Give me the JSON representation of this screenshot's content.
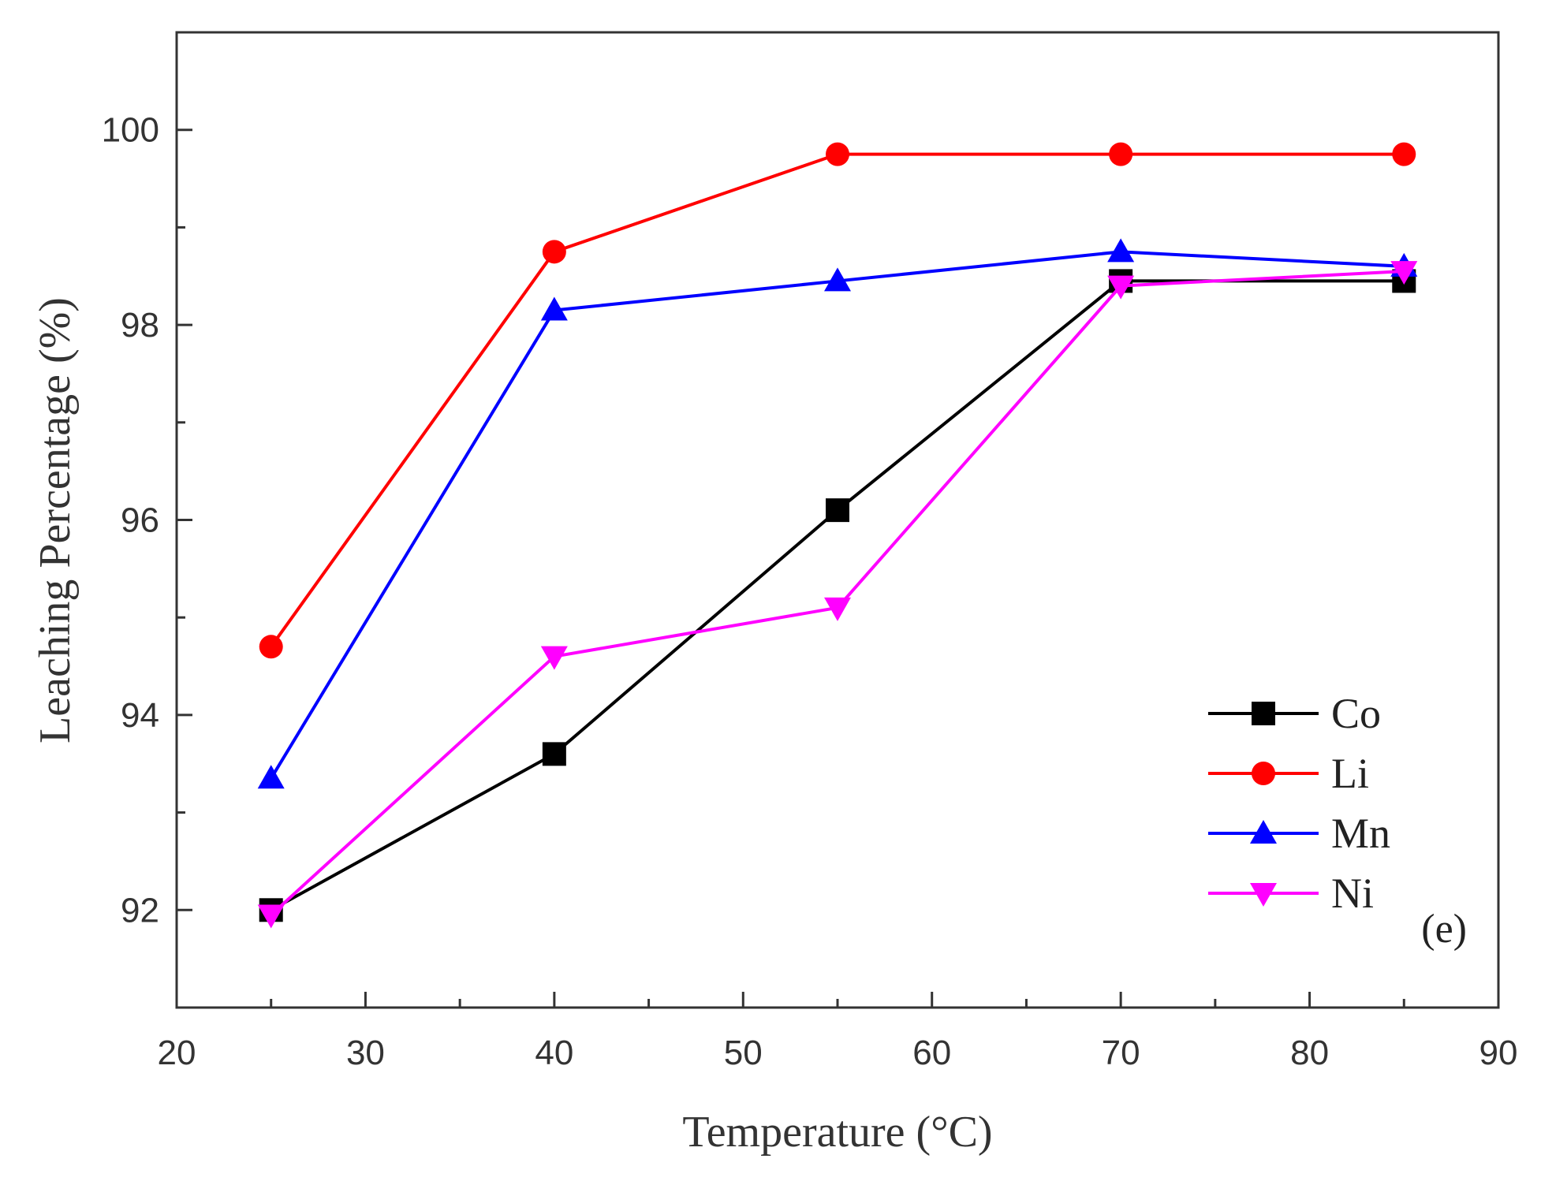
{
  "chart_data": {
    "type": "line",
    "title": "",
    "xlabel": "Temperature (°C)",
    "ylabel": "Leaching Percentage (%)",
    "xlim": [
      20,
      90
    ],
    "ylim": [
      91,
      101
    ],
    "xticks": [
      20,
      30,
      40,
      50,
      60,
      70,
      80,
      90
    ],
    "yticks": [
      92,
      94,
      96,
      98,
      100
    ],
    "grid": false,
    "legend": "bottom-right",
    "annotation": "(e)",
    "x": [
      25,
      40,
      55,
      70,
      85
    ],
    "series": [
      {
        "name": "Co",
        "color": "#000000",
        "marker": "square",
        "values": [
          92.0,
          93.6,
          96.1,
          98.45,
          98.45
        ]
      },
      {
        "name": "Li",
        "color": "#ff0000",
        "marker": "circle",
        "values": [
          94.7,
          98.75,
          99.75,
          99.75,
          99.75
        ]
      },
      {
        "name": "Mn",
        "color": "#0000ff",
        "marker": "triangle-up",
        "values": [
          93.35,
          98.15,
          98.45,
          98.75,
          98.6
        ]
      },
      {
        "name": "Ni",
        "color": "#ff00ff",
        "marker": "triangle-down",
        "values": [
          91.95,
          94.6,
          95.1,
          98.4,
          98.55
        ]
      }
    ]
  }
}
